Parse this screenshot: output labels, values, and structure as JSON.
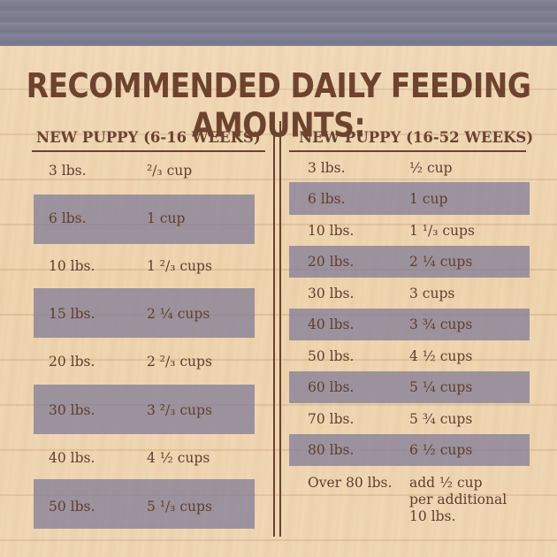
{
  "title": "RECOMMENDED DAILY FEEDING AMOUNTS:",
  "left_table": {
    "header": "NEW PUPPY (6-16 WEEKS)",
    "rows": [
      {
        "weight": "3 lbs.",
        "amount": "²/₃ cup",
        "shaded": false
      },
      {
        "weight": "6 lbs.",
        "amount": "1 cup",
        "shaded": true
      },
      {
        "weight": "10 lbs.",
        "amount": "1 ²/₃ cups",
        "shaded": false
      },
      {
        "weight": "15 lbs.",
        "amount": "2 ¼ cups",
        "shaded": true
      },
      {
        "weight": "20 lbs.",
        "amount": "2 ²/₃ cups",
        "shaded": false
      },
      {
        "weight": "30 lbs.",
        "amount": "3 ²/₃ cups",
        "shaded": true
      },
      {
        "weight": "40 lbs.",
        "amount": "4 ½ cups",
        "shaded": false
      },
      {
        "weight": "50 lbs.",
        "amount": "5 ¹/₃ cups",
        "shaded": true
      }
    ]
  },
  "right_table": {
    "header": "NEW PUPPY (16-52 WEEKS)",
    "rows": [
      {
        "weight": "3 lbs.",
        "amount": "½ cup",
        "shaded": false
      },
      {
        "weight": "6 lbs.",
        "amount": "1 cup",
        "shaded": true
      },
      {
        "weight": "10 lbs.",
        "amount": "1 ¹/₃ cups",
        "shaded": false
      },
      {
        "weight": "20 lbs.",
        "amount": "2 ¼ cups",
        "shaded": true
      },
      {
        "weight": "30 lbs.",
        "amount": "3 cups",
        "shaded": false
      },
      {
        "weight": "40 lbs.",
        "amount": "3 ¾ cups",
        "shaded": true
      },
      {
        "weight": "50 lbs.",
        "amount": "4 ½ cups",
        "shaded": false
      },
      {
        "weight": "60 lbs.",
        "amount": "5 ¼ cups",
        "shaded": true
      },
      {
        "weight": "70 lbs.",
        "amount": "5 ¾ cups",
        "shaded": false
      },
      {
        "weight": "80 lbs.",
        "amount": "6 ½ cups",
        "shaded": true
      },
      {
        "weight": "Over 80 lbs.",
        "amount": "add ½ cup\nper additional\n10 lbs.",
        "shaded": false
      }
    ]
  },
  "colors": {
    "text": "#5e3e2e",
    "title": "#6e432e",
    "shade_band": "#7d7896",
    "top_band": "#7e7f92",
    "wood": "#f0d8b6"
  }
}
